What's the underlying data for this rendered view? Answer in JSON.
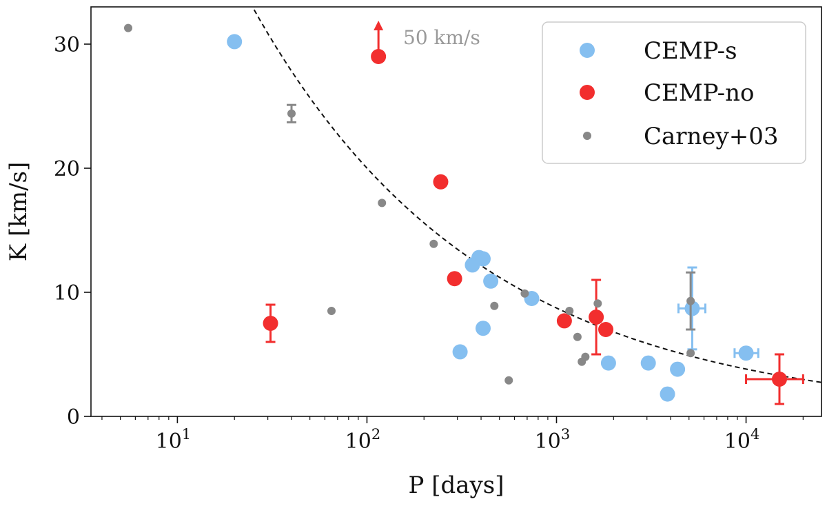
{
  "chart_data": {
    "type": "scatter",
    "xlabel": "P [days]",
    "ylabel": "K [km/s]",
    "xscale": "log",
    "xlim": [
      3.5,
      25000
    ],
    "ylim": [
      0,
      33
    ],
    "grid": false,
    "legend_position": "top-right",
    "xticks": [
      {
        "value": 10,
        "base": "10",
        "exp": "1"
      },
      {
        "value": 100,
        "base": "10",
        "exp": "2"
      },
      {
        "value": 1000,
        "base": "10",
        "exp": "3"
      },
      {
        "value": 10000,
        "base": "10",
        "exp": "4"
      }
    ],
    "yticks": [
      {
        "value": 0,
        "label": "0"
      },
      {
        "value": 10,
        "label": "10"
      },
      {
        "value": 20,
        "label": "20"
      },
      {
        "value": 30,
        "label": "30"
      }
    ],
    "legend": [
      {
        "label": "CEMP-s",
        "color": "#85bff0",
        "marker": "large-circle"
      },
      {
        "label": "CEMP-no",
        "color": "#f22e2e",
        "marker": "large-circle"
      },
      {
        "label": "Carney+03",
        "color": "#888888",
        "marker": "small-circle"
      }
    ],
    "annotation": {
      "text": "50 km/s",
      "x": 115,
      "y": 29,
      "color": "#999999"
    },
    "fit_curve": {
      "style": "dashed",
      "color": "#111111",
      "form": "K = 105 * P^(-0.36)",
      "coefficient": 105,
      "exponent": -0.36
    },
    "series": [
      {
        "name": "CEMP-s",
        "color": "#85bff0",
        "points": [
          {
            "x": 20,
            "y": 30.2
          },
          {
            "x": 310,
            "y": 5.2
          },
          {
            "x": 360,
            "y": 12.2
          },
          {
            "x": 390,
            "y": 12.8
          },
          {
            "x": 410,
            "y": 12.7
          },
          {
            "x": 410,
            "y": 7.1
          },
          {
            "x": 450,
            "y": 10.9
          },
          {
            "x": 740,
            "y": 9.5
          },
          {
            "x": 1880,
            "y": 4.3
          },
          {
            "x": 3050,
            "y": 4.3
          },
          {
            "x": 3850,
            "y": 1.8
          },
          {
            "x": 4350,
            "y": 3.8
          },
          {
            "x": 5200,
            "y": 8.7,
            "yerr": 3.3,
            "xerr": [
              4400,
              6100
            ]
          },
          {
            "x": 10000,
            "y": 5.1,
            "xerr": [
              8700,
              11600
            ]
          }
        ]
      },
      {
        "name": "CEMP-no",
        "color": "#f22e2e",
        "points": [
          {
            "x": 31,
            "y": 7.5,
            "yerr": 1.5
          },
          {
            "x": 115,
            "y": 29.0,
            "lower_limit": true
          },
          {
            "x": 245,
            "y": 18.9
          },
          {
            "x": 290,
            "y": 11.1
          },
          {
            "x": 1100,
            "y": 7.7
          },
          {
            "x": 1620,
            "y": 8.0,
            "yerr": 3.0
          },
          {
            "x": 1820,
            "y": 7.0
          },
          {
            "x": 15000,
            "y": 3.0,
            "yerr": 2.0,
            "xerr": [
              10000,
              20000
            ]
          }
        ]
      },
      {
        "name": "Carney+03",
        "color": "#888888",
        "points": [
          {
            "x": 5.5,
            "y": 31.3
          },
          {
            "x": 40,
            "y": 24.4,
            "yerr": 0.7
          },
          {
            "x": 65,
            "y": 8.5
          },
          {
            "x": 120,
            "y": 17.2
          },
          {
            "x": 225,
            "y": 13.9
          },
          {
            "x": 470,
            "y": 8.9
          },
          {
            "x": 560,
            "y": 2.9
          },
          {
            "x": 680,
            "y": 9.9
          },
          {
            "x": 1170,
            "y": 8.5
          },
          {
            "x": 1290,
            "y": 6.4
          },
          {
            "x": 1360,
            "y": 4.4
          },
          {
            "x": 1420,
            "y": 4.8
          },
          {
            "x": 1650,
            "y": 9.1
          },
          {
            "x": 5100,
            "y": 9.3,
            "yerr": 2.3
          },
          {
            "x": 5100,
            "y": 5.1
          }
        ]
      }
    ]
  }
}
